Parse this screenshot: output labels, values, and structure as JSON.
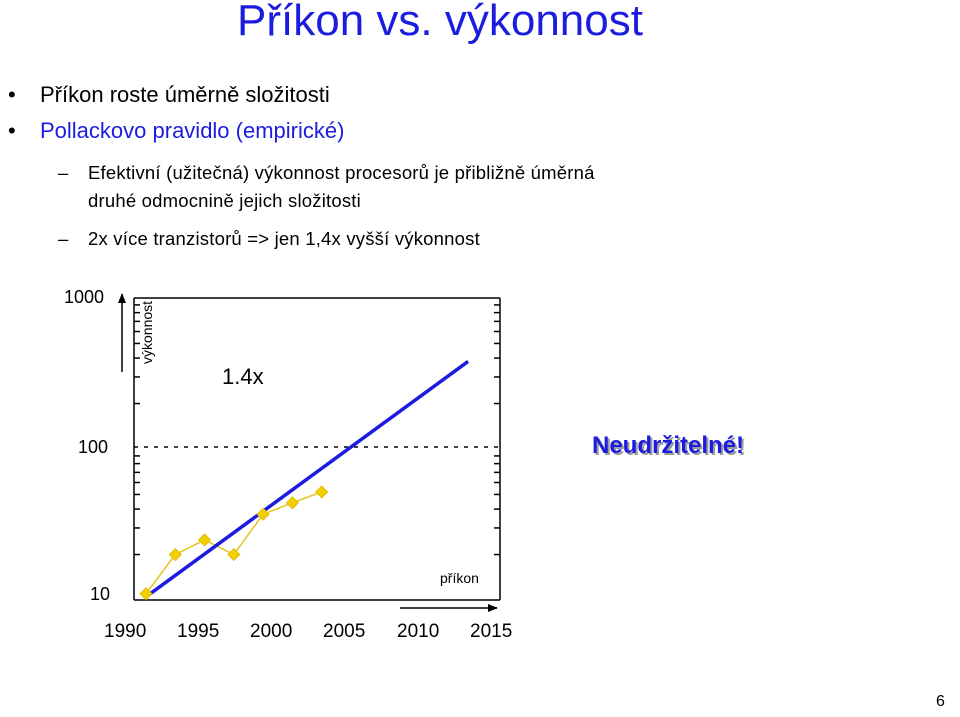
{
  "slide": {
    "title": "Příkon vs. výkonnost",
    "bullets": [
      {
        "symbol": "•",
        "text": "Příkon roste úměrně složitosti",
        "color": "#000000"
      },
      {
        "symbol": "•",
        "text": "Pollackovo pravidlo (empirické)",
        "color": "#1c1ce0"
      }
    ],
    "subbullets": [
      {
        "symbol": "–",
        "line1": "Efektivní (užitečná) výkonnost procesorů je přibližně úměrná",
        "line2": "druhé odmocnině jejich složitosti"
      },
      {
        "symbol": "–",
        "text": "2x více tranzistorů => jen 1,4x vyšší výkonnost"
      }
    ],
    "page_number": "6"
  },
  "chart_data": {
    "type": "line",
    "y_scale": "log",
    "ylim": [
      10,
      1000
    ],
    "y_tick_labels": [
      "1000",
      "100",
      "10"
    ],
    "x_tick_labels": [
      "1990",
      "1995",
      "2000",
      "2005",
      "2010",
      "2015"
    ],
    "xlim": [
      1990,
      2015
    ],
    "series": [
      {
        "marker": "diamond",
        "color": "#e8c21c",
        "x": [
          1990,
          1992,
          1994,
          1996,
          1998,
          2000,
          2002
        ],
        "y": [
          11,
          20,
          25,
          20,
          37,
          44,
          52
        ]
      }
    ],
    "trend_line": {
      "color": "#1c1ce0",
      "x": [
        1990,
        2012
      ],
      "y": [
        10.5,
        380
      ]
    },
    "annotations": {
      "factor": "1.4x",
      "y_arrow_label": "výkonnost",
      "x_arrow_label": "příkon",
      "callout": "Neudržitelné!"
    }
  }
}
